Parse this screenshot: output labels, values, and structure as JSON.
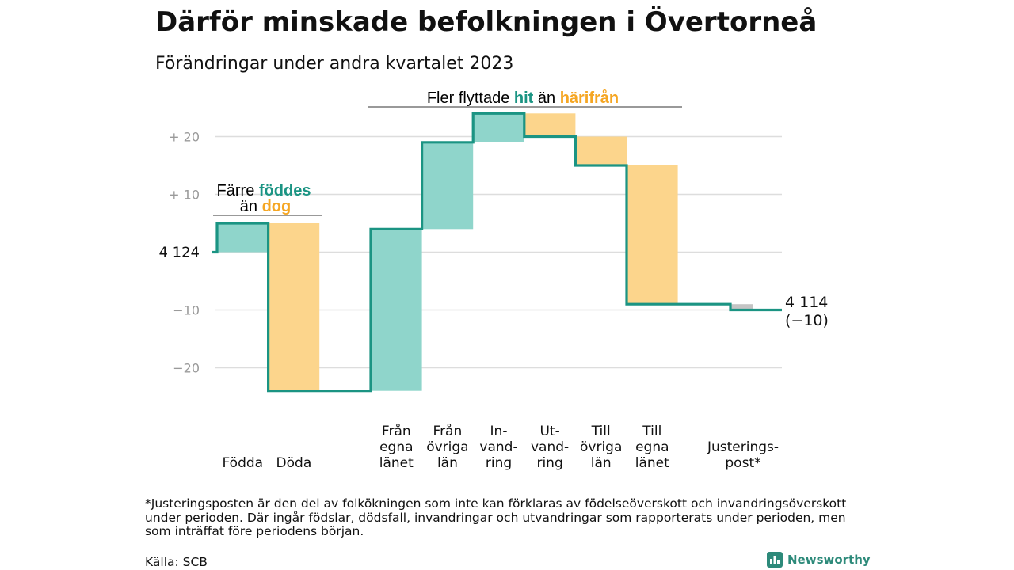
{
  "header": {
    "title": "Därför minskade befolkningen i Övertorneå",
    "subtitle": "Förändringar under andra kvartalet 2023"
  },
  "colors": {
    "in": "#8fd5cb",
    "out": "#fcd58c",
    "adjust": "#c4c4c4",
    "line": "#1b9483",
    "teal_text": "#1b9483",
    "orange_text": "#f5a623",
    "grid": "#dddddd"
  },
  "chart_data": {
    "type": "waterfall",
    "start": 4124,
    "end": 4114,
    "ylim": [
      -27,
      27
    ],
    "yticks": [
      {
        "value": 20,
        "label": "+  20"
      },
      {
        "value": 10,
        "label": "+  10"
      },
      {
        "value": 0,
        "label": "4  124"
      },
      {
        "value": -10,
        "label": "−10"
      },
      {
        "value": -20,
        "label": "−20"
      }
    ],
    "steps": [
      {
        "category": [
          "",
          "",
          "Födda"
        ],
        "value": 5,
        "kind": "in"
      },
      {
        "category": [
          "",
          "",
          "Döda"
        ],
        "value": -29,
        "kind": "out"
      },
      {
        "category": [
          "Från",
          "egna",
          "länet"
        ],
        "value": 28,
        "kind": "in"
      },
      {
        "category": [
          "Från",
          "övriga",
          "län"
        ],
        "value": 15,
        "kind": "in"
      },
      {
        "category": [
          "In-",
          "vand-",
          "ring"
        ],
        "value": 5,
        "kind": "in"
      },
      {
        "category": [
          "Ut-",
          "vand-",
          "ring"
        ],
        "value": -4,
        "kind": "out"
      },
      {
        "category": [
          "Till",
          "övriga",
          "län"
        ],
        "value": -5,
        "kind": "out"
      },
      {
        "category": [
          "Till",
          "egna",
          "länet"
        ],
        "value": -24,
        "kind": "out"
      },
      {
        "category": [
          "",
          "Justerings-",
          "post*"
        ],
        "value": -1,
        "kind": "adjust"
      }
    ],
    "end_label": "4 114",
    "end_change": "(−10)",
    "annotations": {
      "births": {
        "line1_prefix": "Färre ",
        "line1_key": "föddes",
        "line2_prefix": "än ",
        "line2_key": "dog"
      },
      "migration": {
        "prefix": "Fler flyttade ",
        "key1": "hit",
        "middle": "  än ",
        "key2": "härifrån"
      }
    }
  },
  "footnote": "*Justeringsposten är den del av folkökningen som inte kan förklaras av födelseöverskott och invandringsöverskott under perioden. Där ingår födslar, dödsfall, invandringar och utvandringar som rapporterats under perioden, men som inträffat före periodens början.",
  "source": "Källa: SCB",
  "logo": {
    "text": "Newsworthy",
    "icon": "bar-chart-logo-icon"
  }
}
